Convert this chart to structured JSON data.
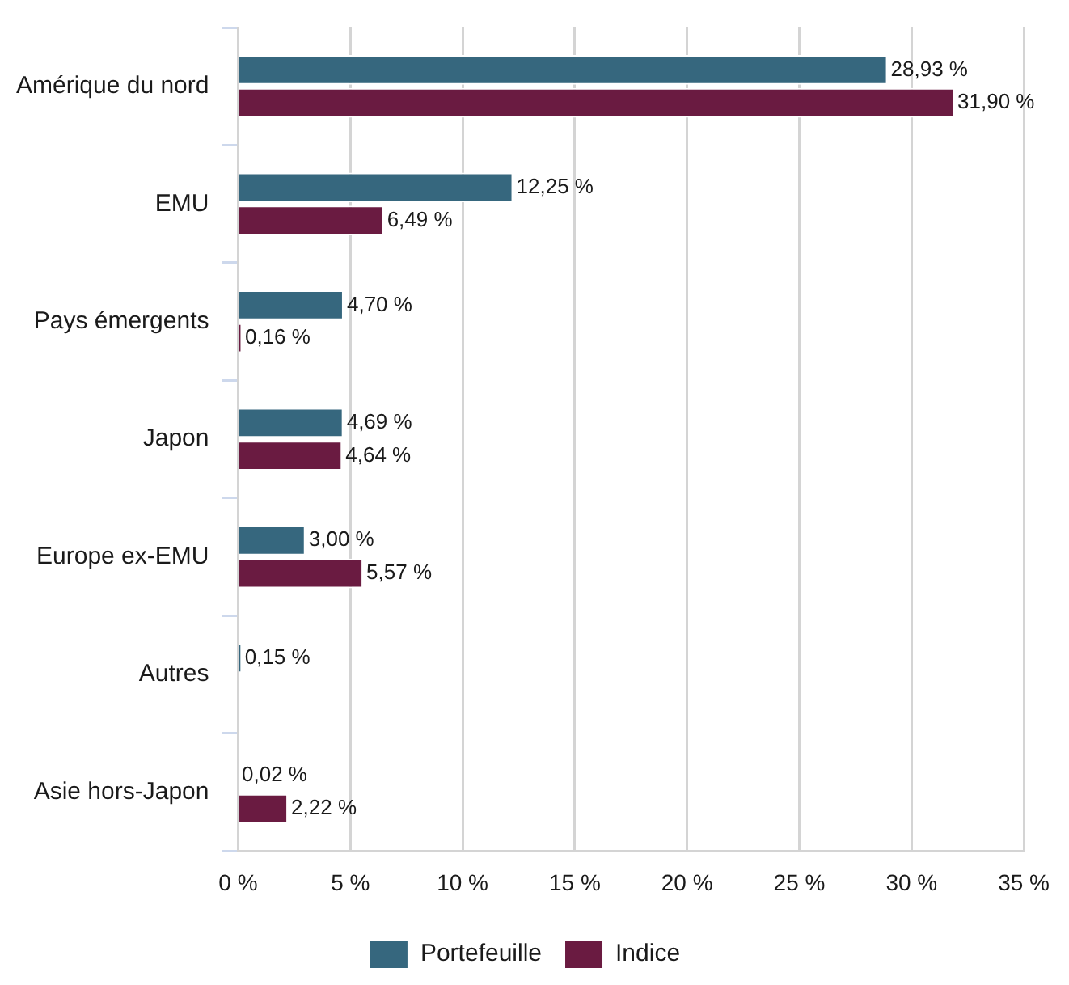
{
  "chart_data": {
    "type": "bar",
    "orientation": "horizontal",
    "categories": [
      "Amérique du nord",
      "EMU",
      "Pays émergents",
      "Japon",
      "Europe ex-EMU",
      "Autres",
      "Asie hors-Japon"
    ],
    "series": [
      {
        "name": "Portefeuille",
        "color": "#36677e",
        "values": [
          28.93,
          12.25,
          4.7,
          4.69,
          3.0,
          0.15,
          0.02
        ],
        "value_labels": [
          "28,93 %",
          "12,25 %",
          "4,70 %",
          "4,69 %",
          "3,00 %",
          "0,15 %",
          "0,02 %"
        ]
      },
      {
        "name": "Indice",
        "color": "#6a1b41",
        "values": [
          31.9,
          6.49,
          0.16,
          4.64,
          5.57,
          null,
          2.22
        ],
        "value_labels": [
          "31,90 %",
          "6,49 %",
          "0,16 %",
          "4,64 %",
          "5,57 %",
          null,
          "2,22 %"
        ]
      }
    ],
    "xlim": [
      0,
      35
    ],
    "xticks": [
      {
        "value": 0,
        "label": "0 %"
      },
      {
        "value": 5,
        "label": "5 %"
      },
      {
        "value": 10,
        "label": "10 %"
      },
      {
        "value": 15,
        "label": "15 %"
      },
      {
        "value": 20,
        "label": "20 %"
      },
      {
        "value": 25,
        "label": "25 %"
      },
      {
        "value": 30,
        "label": "30 %"
      },
      {
        "value": 35,
        "label": "35 %"
      }
    ],
    "grid": "x",
    "legend": "bottom"
  }
}
